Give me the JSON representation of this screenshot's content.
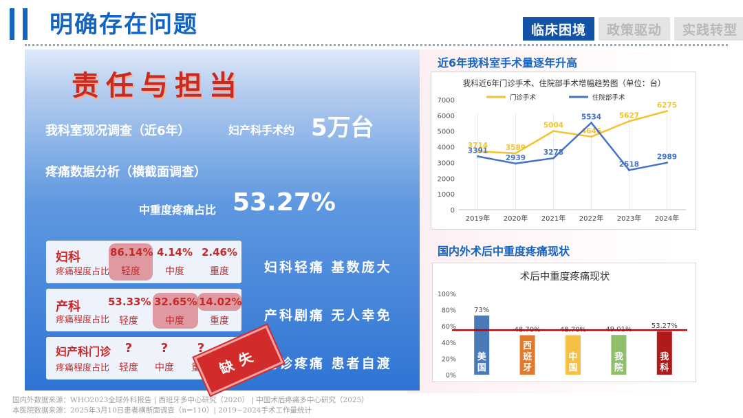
{
  "header": {
    "title": "明确存在问题",
    "tabs": [
      "临床困境",
      "政策驱动",
      "实践转型"
    ]
  },
  "left": {
    "calligraphy": "责任与担当",
    "survey_label": "我科室现况调查（近6年）",
    "surgery_label": "妇产科手术约",
    "surgery_value": "5万台",
    "pain_analysis": "疼痛数据分析（横截面调查）",
    "ratio_label": "中重度疼痛占比",
    "ratio_value": "53.27%",
    "cards": [
      {
        "name": "妇科",
        "sub": "疼痛程度占比",
        "values": [
          "86.14%",
          "4.14%",
          "2.46%"
        ],
        "levels": [
          "轻度",
          "中度",
          "重度"
        ]
      },
      {
        "name": "产科",
        "sub": "疼痛程度占比",
        "values": [
          "53.33%",
          "32.65%",
          "14.02%"
        ],
        "levels": [
          "轻度",
          "中度",
          "重度"
        ]
      },
      {
        "name": "妇产科门诊",
        "sub": "疼痛程度占比",
        "values": [
          "?",
          "?",
          "?"
        ],
        "levels": [
          "轻度",
          "中度",
          "重度"
        ]
      }
    ],
    "slogans": [
      "妇科轻痛 基数庞大",
      "产科剧痛 无人幸免",
      "门诊疼痛 患者自渡"
    ],
    "stamp": "缺失",
    "sources": [
      "国内外数据来源：WHO2023全球外科报告 | 西班牙多中心研究（2020） | 中国术后疼痛多中心研究（2025）",
      "本医院数据来源：2025年3月10日患者横断面调查（n=110）| 2019~2024手术工作量统计"
    ]
  },
  "right": {
    "line_section_title": "近6年我科室手术量逐年升高",
    "bar_section_title": "国内外术后中重度疼痛现状"
  },
  "colors": {
    "accent": "#1565c0",
    "outpatient_line": "#f2c230",
    "inpatient_line": "#4472c4",
    "threshold_line": "#c00000"
  },
  "chart_data": [
    {
      "type": "line",
      "title": "我科近6年门诊手术、住院部手术增幅趋势图（单位：台）",
      "x": [
        "2019年",
        "2020年",
        "2021年",
        "2022年",
        "2023年",
        "2024年"
      ],
      "series": [
        {
          "name": "门诊手术",
          "values": [
            3714,
            3589,
            5004,
            4646,
            5627,
            6275
          ],
          "labels": [
            "3714",
            "3589",
            "5004",
            "4646",
            "5627",
            "6275"
          ],
          "color": "#f2c230"
        },
        {
          "name": "住院部手术",
          "values": [
            3391,
            2939,
            3278,
            5534,
            2518,
            2989
          ],
          "labels": [
            "3391",
            "2939",
            "3278",
            "5534",
            "2518",
            "2989"
          ],
          "color": "#4472c4"
        }
      ],
      "yticks": [
        "0",
        "1000",
        "2000",
        "3000",
        "4000",
        "5000",
        "6000",
        "7000"
      ],
      "ylim": [
        0,
        7000
      ],
      "grid": false,
      "legend": "top"
    },
    {
      "type": "bar",
      "title": "术后中重度疼痛现状",
      "categories": [
        "美国",
        "西班牙",
        "中国",
        "我院",
        "我科"
      ],
      "values": [
        73,
        48.7,
        48.7,
        49.01,
        53.27
      ],
      "labels": [
        "73%",
        "48.70%",
        "48.70%",
        "49.01%",
        "53.27%"
      ],
      "colors": [
        "#4a7ab8",
        "#e07a2f",
        "#f5c043",
        "#8fbf6a",
        "#b11a1a"
      ],
      "yticks": [
        "0%",
        "20%",
        "40%",
        "60%",
        "80%",
        "100%"
      ],
      "ylim": [
        0,
        100
      ],
      "threshold": 55,
      "grid": false
    }
  ]
}
